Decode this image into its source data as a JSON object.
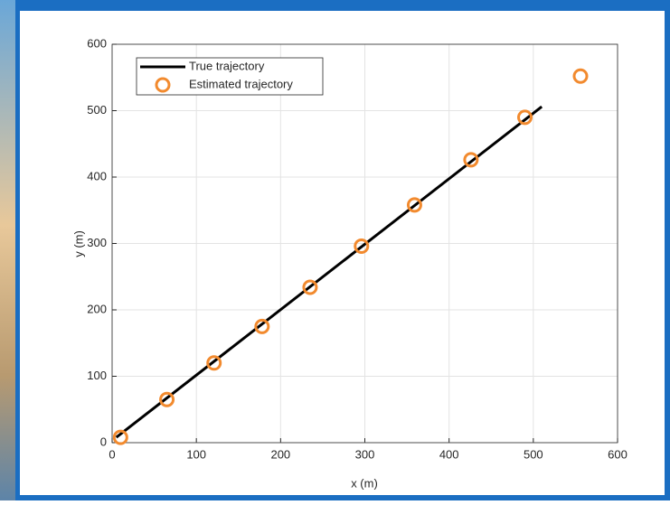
{
  "chart_data": {
    "type": "line",
    "xlabel": "x (m)",
    "ylabel": "y (m)",
    "xlim": [
      0,
      600
    ],
    "xticks": [
      0,
      100,
      200,
      300,
      400,
      500,
      600
    ],
    "ylim": [
      0,
      600
    ],
    "yticks": [
      0,
      100,
      200,
      300,
      400,
      500,
      600
    ],
    "grid": true,
    "legend": "upper left",
    "series": [
      {
        "name": "True trajectory",
        "color": "#000000",
        "style": "line",
        "x": [
          5,
          510
        ],
        "values": [
          8,
          506
        ]
      },
      {
        "name": "Estimated trajectory",
        "color": "#f28a2e",
        "style": "markers",
        "x": [
          10,
          65,
          121,
          178,
          235,
          296,
          359,
          426,
          490,
          556
        ],
        "values": [
          8,
          65,
          120,
          175,
          234,
          296,
          358,
          426,
          490,
          552
        ]
      }
    ]
  }
}
